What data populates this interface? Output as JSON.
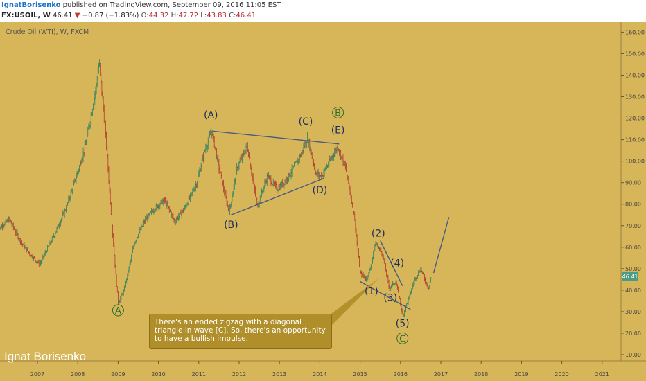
{
  "header": {
    "author": "IgnatBorisenko",
    "published": "published on TradingView.com, September 09, 2016 11:05 EST",
    "symbol": "FX:USOIL, W",
    "price": "46.41",
    "change_arrow": "▼",
    "change": "−0.87 (−1.83%)",
    "o_label": "O:",
    "o_value": "44.32",
    "h_label": "H:",
    "h_value": "47.72",
    "l_label": "L:",
    "l_value": "43.83",
    "c_label": "C:",
    "c_value": "46.41"
  },
  "pane_title": "Crude Oil (WTI), W, FXCM",
  "watermark": "Ignat Borisenko",
  "note": "There's an ended zigzag with a diagonal triangle in wave [C]. So, there's an opportunity to have a bullish impulse.",
  "colors": {
    "background": "#d7b659",
    "bar_up": "#2f7f5f",
    "bar_down": "#b03a2e",
    "wave_line": "#465a84",
    "label_blue": "#1c2d5e",
    "label_green": "#2c6b2c",
    "last_price_tag": "#4f9a82",
    "note_bg": "#b08f2a"
  },
  "chart_data": {
    "type": "ohlc",
    "title": "Crude Oil (WTI), W, FXCM",
    "x_axis": {
      "ticks": [
        "2007",
        "2008",
        "2009",
        "2010",
        "2011",
        "2012",
        "2013",
        "2014",
        "2015",
        "2016",
        "2017",
        "2018",
        "2019",
        "2020",
        "2021"
      ]
    },
    "y_axis": {
      "position": "right",
      "range": [
        5,
        165
      ],
      "ticks": [
        "10.00",
        "20.00",
        "30.00",
        "40.00",
        "50.00",
        "60.00",
        "70.00",
        "80.00",
        "90.00",
        "100.00",
        "110.00",
        "120.00",
        "130.00",
        "140.00",
        "150.00",
        "160.00"
      ]
    },
    "last_price": "46.41",
    "price_path": [
      [
        2006.0,
        68
      ],
      [
        2006.3,
        73
      ],
      [
        2006.6,
        62
      ],
      [
        2006.85,
        56
      ],
      [
        2007.05,
        52
      ],
      [
        2007.4,
        65
      ],
      [
        2007.7,
        78
      ],
      [
        2007.95,
        92
      ],
      [
        2008.2,
        108
      ],
      [
        2008.45,
        134
      ],
      [
        2008.53,
        146
      ],
      [
        2008.68,
        115
      ],
      [
        2008.85,
        70
      ],
      [
        2008.95,
        45
      ],
      [
        2009.0,
        34
      ],
      [
        2009.15,
        40
      ],
      [
        2009.4,
        62
      ],
      [
        2009.65,
        72
      ],
      [
        2009.9,
        78
      ],
      [
        2010.15,
        82
      ],
      [
        2010.4,
        72
      ],
      [
        2010.65,
        78
      ],
      [
        2010.95,
        90
      ],
      [
        2011.15,
        105
      ],
      [
        2011.32,
        114
      ],
      [
        2011.5,
        97
      ],
      [
        2011.75,
        76
      ],
      [
        2011.95,
        97
      ],
      [
        2012.2,
        107
      ],
      [
        2012.45,
        79
      ],
      [
        2012.7,
        93
      ],
      [
        2012.95,
        87
      ],
      [
        2013.2,
        92
      ],
      [
        2013.5,
        102
      ],
      [
        2013.7,
        111
      ],
      [
        2013.9,
        94
      ],
      [
        2014.05,
        93
      ],
      [
        2014.3,
        102
      ],
      [
        2014.45,
        107
      ],
      [
        2014.65,
        96
      ],
      [
        2014.85,
        75
      ],
      [
        2015.0,
        48
      ],
      [
        2015.15,
        45
      ],
      [
        2015.25,
        50
      ],
      [
        2015.38,
        62
      ],
      [
        2015.55,
        57
      ],
      [
        2015.72,
        41
      ],
      [
        2015.88,
        44
      ],
      [
        2015.98,
        36
      ],
      [
        2016.05,
        28
      ],
      [
        2016.2,
        36
      ],
      [
        2016.35,
        45
      ],
      [
        2016.5,
        50
      ],
      [
        2016.6,
        45
      ],
      [
        2016.7,
        41
      ],
      [
        2016.76,
        46.41
      ]
    ],
    "forecast": [
      [
        2016.82,
        48
      ],
      [
        2017.2,
        74
      ]
    ],
    "trend_lines": [
      [
        [
          2011.32,
          114
        ],
        [
          2014.48,
          108
        ]
      ],
      [
        [
          2011.8,
          75
        ],
        [
          2014.1,
          92
        ]
      ],
      [
        [
          2015.5,
          63
        ],
        [
          2016.05,
          42
        ]
      ],
      [
        [
          2015.0,
          44
        ],
        [
          2016.25,
          31
        ]
      ]
    ],
    "wave_labels": [
      {
        "text": "A",
        "x": 2009.0,
        "y": 29,
        "circled": true
      },
      {
        "text": "(A)",
        "x": 2011.3,
        "y": 120,
        "circled": false
      },
      {
        "text": "(B)",
        "x": 2011.8,
        "y": 69,
        "circled": false
      },
      {
        "text": "(C)",
        "x": 2013.65,
        "y": 117,
        "circled": false
      },
      {
        "text": "(D)",
        "x": 2014.0,
        "y": 85,
        "circled": false
      },
      {
        "text": "(E)",
        "x": 2014.45,
        "y": 113,
        "circled": false
      },
      {
        "text": "B",
        "x": 2014.45,
        "y": 121,
        "circled": true
      },
      {
        "text": "(1)",
        "x": 2015.28,
        "y": 38,
        "circled": false
      },
      {
        "text": "(2)",
        "x": 2015.45,
        "y": 65,
        "circled": false
      },
      {
        "text": "(3)",
        "x": 2015.75,
        "y": 35,
        "circled": false
      },
      {
        "text": "(4)",
        "x": 2015.92,
        "y": 51,
        "circled": false
      },
      {
        "text": "(5)",
        "x": 2016.05,
        "y": 23,
        "circled": false
      },
      {
        "text": "C",
        "x": 2016.05,
        "y": 16,
        "circled": true
      }
    ]
  }
}
